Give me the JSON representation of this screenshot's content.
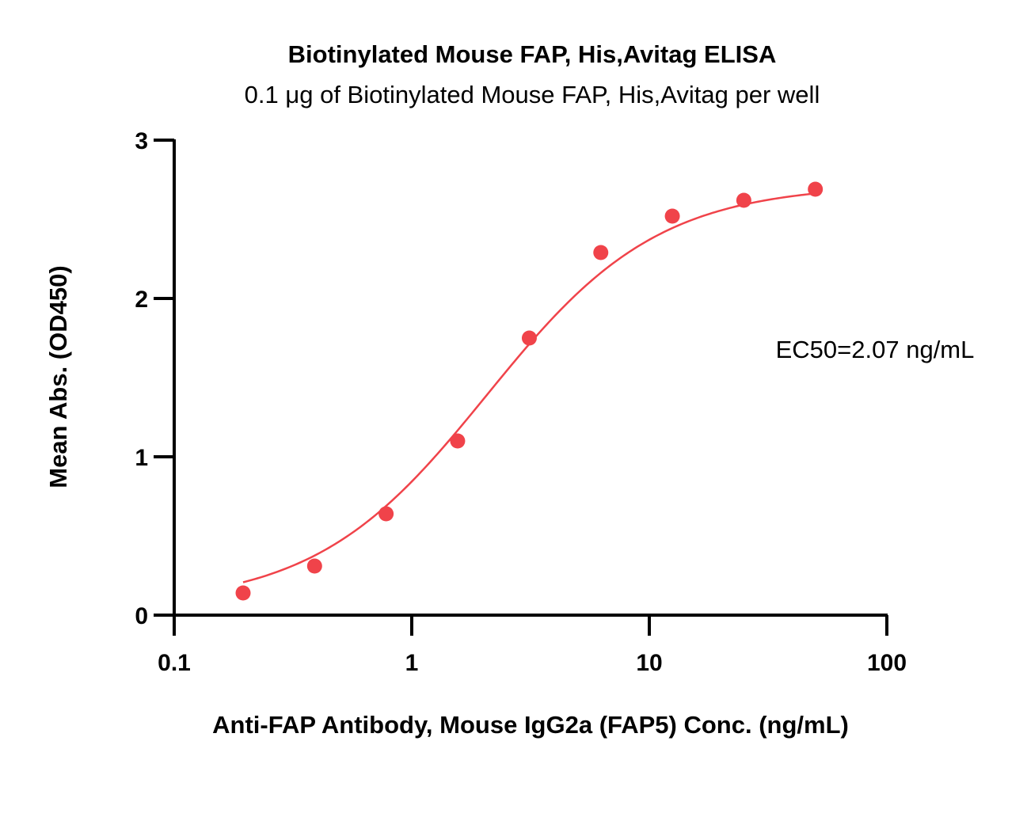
{
  "chart_data": {
    "type": "scatter",
    "title": "Biotinylated Mouse FAP, His,Avitag ELISA",
    "subtitle": "0.1 μg of Biotinylated Mouse FAP, His,Avitag per well",
    "xlabel": "Anti-FAP Antibody, Mouse IgG2a (FAP5) Conc. (ng/mL)",
    "ylabel": "Mean Abs. (OD450)",
    "x_scale": "log",
    "xlim": [
      0.1,
      100
    ],
    "ylim": [
      0,
      3
    ],
    "x_ticks": [
      0.1,
      1,
      10,
      100
    ],
    "x_tick_labels": [
      "0.1",
      "1",
      "10",
      "100"
    ],
    "y_ticks": [
      0,
      1,
      2,
      3
    ],
    "y_tick_labels": [
      "0",
      "1",
      "2",
      "3"
    ],
    "grid": false,
    "legend": "none",
    "annotation": "EC50=2.07 ng/mL",
    "color": "#f0434a",
    "series": [
      {
        "x": [
          0.195,
          0.39,
          0.78,
          1.56,
          3.125,
          6.25,
          12.5,
          25,
          50
        ],
        "y": [
          0.14,
          0.31,
          0.64,
          1.1,
          1.75,
          2.29,
          2.52,
          2.62,
          2.69
        ]
      }
    ],
    "fit_curve": {
      "type": "4PL",
      "bottom": 0.06,
      "top": 2.72,
      "ec50": 2.07,
      "hill": 1.2,
      "x_range": [
        0.195,
        50
      ]
    }
  }
}
